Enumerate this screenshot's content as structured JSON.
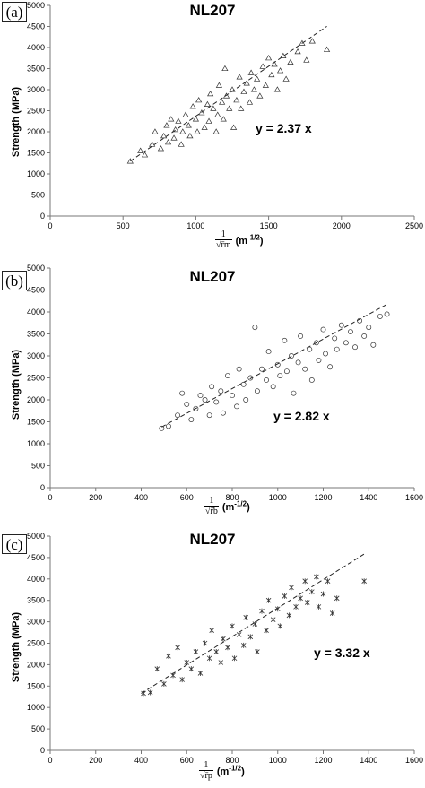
{
  "chart_data": [
    {
      "type": "scatter",
      "panel_tag": "(a)",
      "title": "NL207",
      "ylabel": "Strength (MPa)",
      "xlabel_fraction_numerator": "1",
      "xlabel_fraction_denominator": "√r̄m",
      "xlabel_unit": "(m",
      "xlabel_exponent": "-1/2",
      "xlabel_unit_close": ")",
      "equation": "y = 2.37 x",
      "slope": 2.37,
      "marker": "triangle",
      "xlim": [
        0,
        2500
      ],
      "ylim": [
        0,
        5000
      ],
      "xticks": [
        "0",
        "500",
        "1000",
        "1500",
        "2000",
        "2500"
      ],
      "yticks": [
        "0",
        "500",
        "1000",
        "1500",
        "2000",
        "2500",
        "3000",
        "3500",
        "4000",
        "4500",
        "5000"
      ],
      "fit_x_range": [
        550,
        1900
      ],
      "points": [
        [
          550,
          1300
        ],
        [
          620,
          1550
        ],
        [
          650,
          1450
        ],
        [
          700,
          1700
        ],
        [
          720,
          2000
        ],
        [
          760,
          1600
        ],
        [
          780,
          1900
        ],
        [
          800,
          2150
        ],
        [
          810,
          1750
        ],
        [
          830,
          2300
        ],
        [
          850,
          1850
        ],
        [
          860,
          2050
        ],
        [
          880,
          2250
        ],
        [
          900,
          1700
        ],
        [
          910,
          2000
        ],
        [
          930,
          2400
        ],
        [
          950,
          2150
        ],
        [
          960,
          1900
        ],
        [
          980,
          2600
        ],
        [
          1000,
          2300
        ],
        [
          1010,
          2000
        ],
        [
          1020,
          2750
        ],
        [
          1040,
          2450
        ],
        [
          1060,
          2100
        ],
        [
          1080,
          2650
        ],
        [
          1090,
          2250
        ],
        [
          1100,
          2900
        ],
        [
          1120,
          2550
        ],
        [
          1140,
          2000
        ],
        [
          1150,
          2400
        ],
        [
          1160,
          3100
        ],
        [
          1180,
          2700
        ],
        [
          1190,
          2300
        ],
        [
          1200,
          3500
        ],
        [
          1210,
          2850
        ],
        [
          1230,
          2550
        ],
        [
          1250,
          3000
        ],
        [
          1260,
          2100
        ],
        [
          1280,
          2750
        ],
        [
          1300,
          3300
        ],
        [
          1310,
          2550
        ],
        [
          1330,
          2950
        ],
        [
          1350,
          3150
        ],
        [
          1370,
          2700
        ],
        [
          1380,
          3400
        ],
        [
          1400,
          3000
        ],
        [
          1420,
          3250
        ],
        [
          1440,
          2850
        ],
        [
          1460,
          3550
        ],
        [
          1480,
          3100
        ],
        [
          1500,
          3750
        ],
        [
          1520,
          3350
        ],
        [
          1540,
          3600
        ],
        [
          1560,
          3000
        ],
        [
          1580,
          3450
        ],
        [
          1600,
          3800
        ],
        [
          1620,
          3250
        ],
        [
          1650,
          3650
        ],
        [
          1700,
          3900
        ],
        [
          1730,
          4100
        ],
        [
          1760,
          3700
        ],
        [
          1800,
          4150
        ],
        [
          1900,
          3950
        ]
      ]
    },
    {
      "type": "scatter",
      "panel_tag": "(b)",
      "title": "NL207",
      "ylabel": "Strength (MPa)",
      "xlabel_fraction_numerator": "1",
      "xlabel_fraction_denominator": "√r̄b",
      "xlabel_unit": "(m",
      "xlabel_exponent": "-1/2",
      "xlabel_unit_close": ")",
      "equation": "y = 2.82 x",
      "slope": 2.82,
      "marker": "circle",
      "xlim": [
        0,
        1600
      ],
      "ylim": [
        0,
        5000
      ],
      "xticks": [
        "0",
        "200",
        "400",
        "600",
        "800",
        "1000",
        "1200",
        "1400",
        "1600"
      ],
      "yticks": [
        "0",
        "500",
        "1000",
        "1500",
        "2000",
        "2500",
        "3000",
        "3500",
        "4000",
        "4500",
        "5000"
      ],
      "fit_x_range": [
        490,
        1480
      ],
      "points": [
        [
          490,
          1350
        ],
        [
          520,
          1400
        ],
        [
          560,
          1650
        ],
        [
          580,
          2150
        ],
        [
          600,
          1900
        ],
        [
          620,
          1550
        ],
        [
          640,
          1800
        ],
        [
          660,
          2100
        ],
        [
          680,
          2000
        ],
        [
          700,
          1650
        ],
        [
          710,
          2300
        ],
        [
          730,
          1950
        ],
        [
          750,
          2200
        ],
        [
          760,
          1700
        ],
        [
          780,
          2550
        ],
        [
          800,
          2100
        ],
        [
          820,
          1850
        ],
        [
          830,
          2700
        ],
        [
          850,
          2350
        ],
        [
          860,
          2000
        ],
        [
          880,
          2500
        ],
        [
          900,
          3650
        ],
        [
          910,
          2200
        ],
        [
          930,
          2700
        ],
        [
          950,
          2450
        ],
        [
          960,
          3100
        ],
        [
          980,
          2300
        ],
        [
          1000,
          2800
        ],
        [
          1010,
          2550
        ],
        [
          1030,
          3350
        ],
        [
          1040,
          2650
        ],
        [
          1060,
          3000
        ],
        [
          1070,
          2150
        ],
        [
          1090,
          2850
        ],
        [
          1100,
          3450
        ],
        [
          1120,
          2700
        ],
        [
          1140,
          3150
        ],
        [
          1150,
          2450
        ],
        [
          1170,
          3300
        ],
        [
          1180,
          2900
        ],
        [
          1200,
          3600
        ],
        [
          1210,
          3050
        ],
        [
          1230,
          2750
        ],
        [
          1250,
          3400
        ],
        [
          1260,
          3150
        ],
        [
          1280,
          3700
        ],
        [
          1300,
          3300
        ],
        [
          1320,
          3550
        ],
        [
          1340,
          3200
        ],
        [
          1360,
          3800
        ],
        [
          1380,
          3450
        ],
        [
          1400,
          3650
        ],
        [
          1420,
          3250
        ],
        [
          1450,
          3900
        ],
        [
          1480,
          3950
        ]
      ]
    },
    {
      "type": "scatter",
      "panel_tag": "(c)",
      "title": "NL207",
      "ylabel": "Strength (MPa)",
      "xlabel_fraction_numerator": "1",
      "xlabel_fraction_denominator": "√r̄p",
      "xlabel_unit": "(m",
      "xlabel_exponent": "-1/2",
      "xlabel_unit_close": ")",
      "equation": "y = 3.32 x",
      "slope": 3.32,
      "marker": "asterisk",
      "xlim": [
        0,
        1600
      ],
      "ylim": [
        0,
        5000
      ],
      "xticks": [
        "0",
        "200",
        "400",
        "600",
        "800",
        "1000",
        "1200",
        "1400",
        "1600"
      ],
      "yticks": [
        "0",
        "500",
        "1000",
        "1500",
        "2000",
        "2500",
        "3000",
        "3500",
        "4000",
        "4500",
        "5000"
      ],
      "fit_x_range": [
        400,
        1380
      ],
      "points": [
        [
          410,
          1330
        ],
        [
          440,
          1350
        ],
        [
          470,
          1900
        ],
        [
          500,
          1550
        ],
        [
          520,
          2200
        ],
        [
          540,
          1750
        ],
        [
          560,
          2400
        ],
        [
          580,
          1650
        ],
        [
          600,
          2050
        ],
        [
          620,
          1900
        ],
        [
          640,
          2300
        ],
        [
          660,
          1800
        ],
        [
          680,
          2500
        ],
        [
          700,
          2150
        ],
        [
          710,
          2800
        ],
        [
          730,
          2300
        ],
        [
          750,
          2050
        ],
        [
          760,
          2600
        ],
        [
          780,
          2400
        ],
        [
          800,
          2900
        ],
        [
          810,
          2150
        ],
        [
          830,
          2700
        ],
        [
          850,
          2450
        ],
        [
          860,
          3100
        ],
        [
          880,
          2650
        ],
        [
          900,
          2950
        ],
        [
          910,
          2300
        ],
        [
          930,
          3250
        ],
        [
          950,
          2800
        ],
        [
          960,
          3500
        ],
        [
          980,
          3050
        ],
        [
          1000,
          3300
        ],
        [
          1010,
          2900
        ],
        [
          1030,
          3600
        ],
        [
          1050,
          3150
        ],
        [
          1060,
          3800
        ],
        [
          1080,
          3350
        ],
        [
          1100,
          3550
        ],
        [
          1120,
          3950
        ],
        [
          1130,
          3450
        ],
        [
          1150,
          3700
        ],
        [
          1170,
          4050
        ],
        [
          1180,
          3350
        ],
        [
          1200,
          3650
        ],
        [
          1220,
          3950
        ],
        [
          1240,
          3200
        ],
        [
          1260,
          3550
        ],
        [
          1380,
          3950
        ]
      ]
    }
  ]
}
